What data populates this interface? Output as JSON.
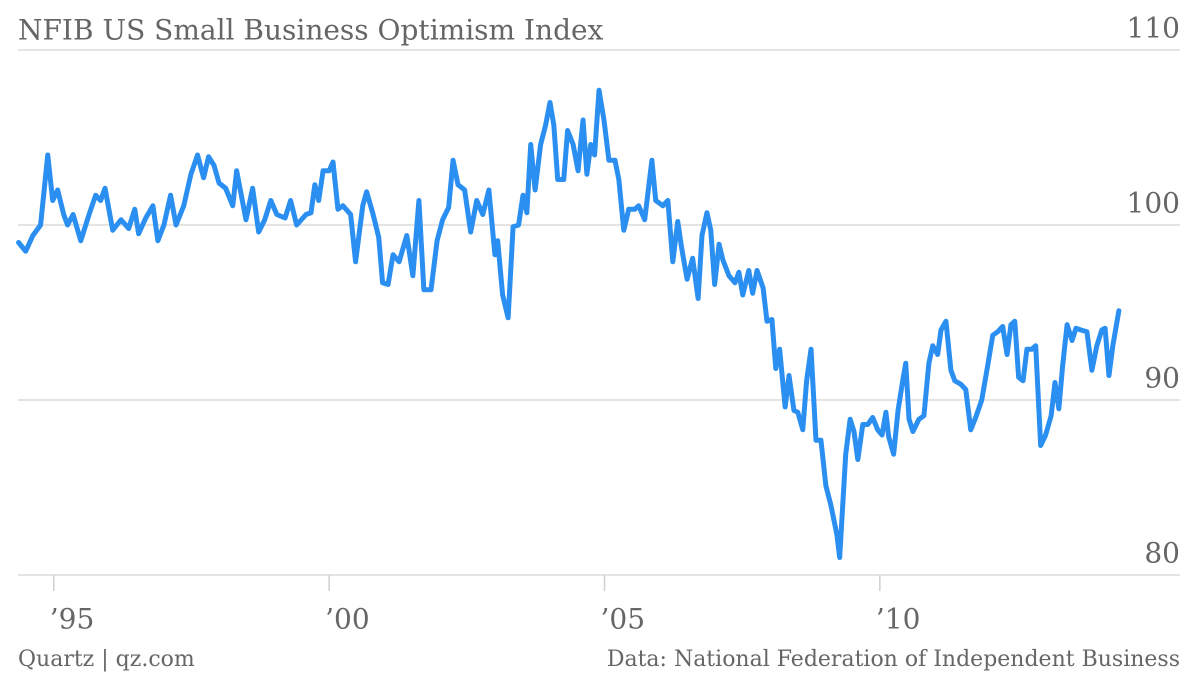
{
  "chart_data": {
    "type": "line",
    "title": "NFIB US Small Business Optimism Index",
    "credit": "Quartz | qz.com",
    "source": "Data: National Federation of Independent Business",
    "color": "#2a8ff0",
    "xlim": [
      1994.35,
      2015.45
    ],
    "ylim": [
      80,
      110
    ],
    "yticks": [
      80,
      90,
      100,
      110
    ],
    "grid": true,
    "xticks": [
      {
        "value": 1995,
        "label": "’95"
      },
      {
        "value": 2000,
        "label": "’00"
      },
      {
        "value": 2005,
        "label": "’05"
      },
      {
        "value": 2010,
        "label": "’10"
      }
    ],
    "x": [
      1994.36,
      1994.49,
      1994.62,
      1994.76,
      1994.89,
      1994.98,
      1995.07,
      1995.18,
      1995.25,
      1995.35,
      1995.49,
      1995.64,
      1995.76,
      1995.85,
      1995.93,
      1996.07,
      1996.22,
      1996.36,
      1996.47,
      1996.54,
      1996.67,
      1996.8,
      1996.89,
      1997.0,
      1997.12,
      1997.22,
      1997.36,
      1997.49,
      1997.61,
      1997.72,
      1997.81,
      1997.91,
      1998.0,
      1998.12,
      1998.25,
      1998.32,
      1998.49,
      1998.61,
      1998.72,
      1998.83,
      1998.94,
      1999.05,
      1999.2,
      1999.3,
      1999.41,
      1999.58,
      1999.67,
      1999.74,
      1999.81,
      1999.89,
      2000.0,
      2000.07,
      2000.16,
      2000.25,
      2000.39,
      2000.48,
      2000.61,
      2000.68,
      2000.79,
      2000.9,
      2000.97,
      2001.07,
      2001.16,
      2001.27,
      2001.41,
      2001.52,
      2001.63,
      2001.72,
      2001.85,
      2001.96,
      2002.06,
      2002.17,
      2002.25,
      2002.34,
      2002.46,
      2002.57,
      2002.68,
      2002.79,
      2002.9,
      2003.01,
      2003.06,
      2003.15,
      2003.25,
      2003.34,
      2003.44,
      2003.52,
      2003.59,
      2003.66,
      2003.74,
      2003.84,
      2003.93,
      2004.01,
      2004.08,
      2004.15,
      2004.26,
      2004.33,
      2004.43,
      2004.52,
      2004.61,
      2004.68,
      2004.75,
      2004.82,
      2004.9,
      2004.99,
      2005.08,
      2005.19,
      2005.26,
      2005.35,
      2005.44,
      2005.55,
      2005.62,
      2005.73,
      2005.86,
      2005.93,
      2006.06,
      2006.15,
      2006.24,
      2006.33,
      2006.4,
      2006.5,
      2006.6,
      2006.7,
      2006.77,
      2006.86,
      2006.93,
      2007.0,
      2007.08,
      2007.15,
      2007.26,
      2007.37,
      2007.44,
      2007.51,
      2007.62,
      2007.69,
      2007.77,
      2007.88,
      2007.95,
      2008.04,
      2008.11,
      2008.18,
      2008.28,
      2008.35,
      2008.44,
      2008.51,
      2008.6,
      2008.67,
      2008.75,
      2008.84,
      2008.93,
      2009.02,
      2009.11,
      2009.22,
      2009.27,
      2009.38,
      2009.46,
      2009.53,
      2009.6,
      2009.69,
      2009.78,
      2009.87,
      2009.96,
      2010.04,
      2010.11,
      2010.16,
      2010.25,
      2010.33,
      2010.42,
      2010.47,
      2010.53,
      2010.6,
      2010.71,
      2010.8,
      2010.89,
      2010.96,
      2011.05,
      2011.11,
      2011.2,
      2011.29,
      2011.36,
      2011.47,
      2011.56,
      2011.65,
      2011.74,
      2011.85,
      2011.96,
      2012.05,
      2012.14,
      2012.23,
      2012.31,
      2012.38,
      2012.45,
      2012.52,
      2012.6,
      2012.67,
      2012.76,
      2012.83,
      2012.92,
      2013.01,
      2013.11,
      2013.18,
      2013.25,
      2013.32,
      2013.4,
      2013.49,
      2013.56,
      2013.65,
      2013.76,
      2013.85,
      2013.94,
      2014.03,
      2014.09,
      2014.16,
      2014.23,
      2014.34
    ],
    "values": [
      99.0,
      98.5,
      99.4,
      100,
      104,
      101.4,
      102,
      100.6,
      100,
      100.6,
      99.1,
      100.6,
      101.7,
      101.4,
      102.1,
      99.7,
      100.3,
      99.8,
      100.9,
      99.5,
      100.4,
      101.1,
      99.1,
      100,
      101.7,
      100,
      101.1,
      102.9,
      104,
      102.7,
      103.9,
      103.4,
      102.4,
      102.1,
      101.1,
      103.1,
      100.3,
      102.1,
      99.6,
      100.3,
      101.4,
      100.6,
      100.4,
      101.4,
      100,
      100.6,
      100.7,
      102.3,
      101.4,
      103.1,
      103.1,
      103.6,
      100.9,
      101.1,
      100.6,
      97.9,
      101.1,
      101.9,
      100.7,
      99.3,
      96.7,
      96.6,
      98.3,
      97.9,
      99.4,
      97.1,
      101.4,
      96.3,
      96.3,
      99.1,
      100.3,
      101,
      103.7,
      102.3,
      102,
      99.6,
      101.4,
      100.6,
      102,
      98.3,
      99.1,
      96,
      94.7,
      99.9,
      100,
      101.7,
      100.7,
      104.6,
      102,
      104.6,
      105.7,
      107,
      105.7,
      102.6,
      102.6,
      105.4,
      104.6,
      103.1,
      106,
      102.9,
      104.6,
      104,
      107.7,
      106,
      103.7,
      103.7,
      102.6,
      99.7,
      100.9,
      100.9,
      101.1,
      100.3,
      103.7,
      101.4,
      101.1,
      101.4,
      97.9,
      100.2,
      98.7,
      96.9,
      98.1,
      95.8,
      99.4,
      100.7,
      99.7,
      96.6,
      98.9,
      98,
      97.1,
      96.7,
      97.3,
      96,
      97.4,
      96.1,
      97.4,
      96.4,
      94.5,
      94.6,
      91.8,
      92.9,
      89.6,
      91.4,
      89.4,
      89.3,
      88.3,
      91.1,
      92.9,
      87.7,
      87.7,
      85.1,
      84,
      82.3,
      81,
      86.9,
      88.9,
      88.2,
      86.6,
      88.6,
      88.6,
      89,
      88.3,
      88,
      89.3,
      87.9,
      86.9,
      89.4,
      91.2,
      92.1,
      88.9,
      88.2,
      88.9,
      89.1,
      92.1,
      93.1,
      92.6,
      94,
      94.5,
      91.7,
      91.1,
      90.9,
      90.6,
      88.3,
      89,
      90,
      92,
      93.7,
      93.9,
      94.2,
      92.6,
      94.3,
      94.5,
      91.3,
      91.1,
      92.9,
      92.9,
      93.1,
      87.4,
      88,
      89.1,
      91,
      89.5,
      92,
      94.3,
      93.4,
      94.1,
      94,
      93.9,
      91.7,
      93.1,
      94,
      94.1,
      91.4,
      93.1,
      95.1
    ]
  }
}
